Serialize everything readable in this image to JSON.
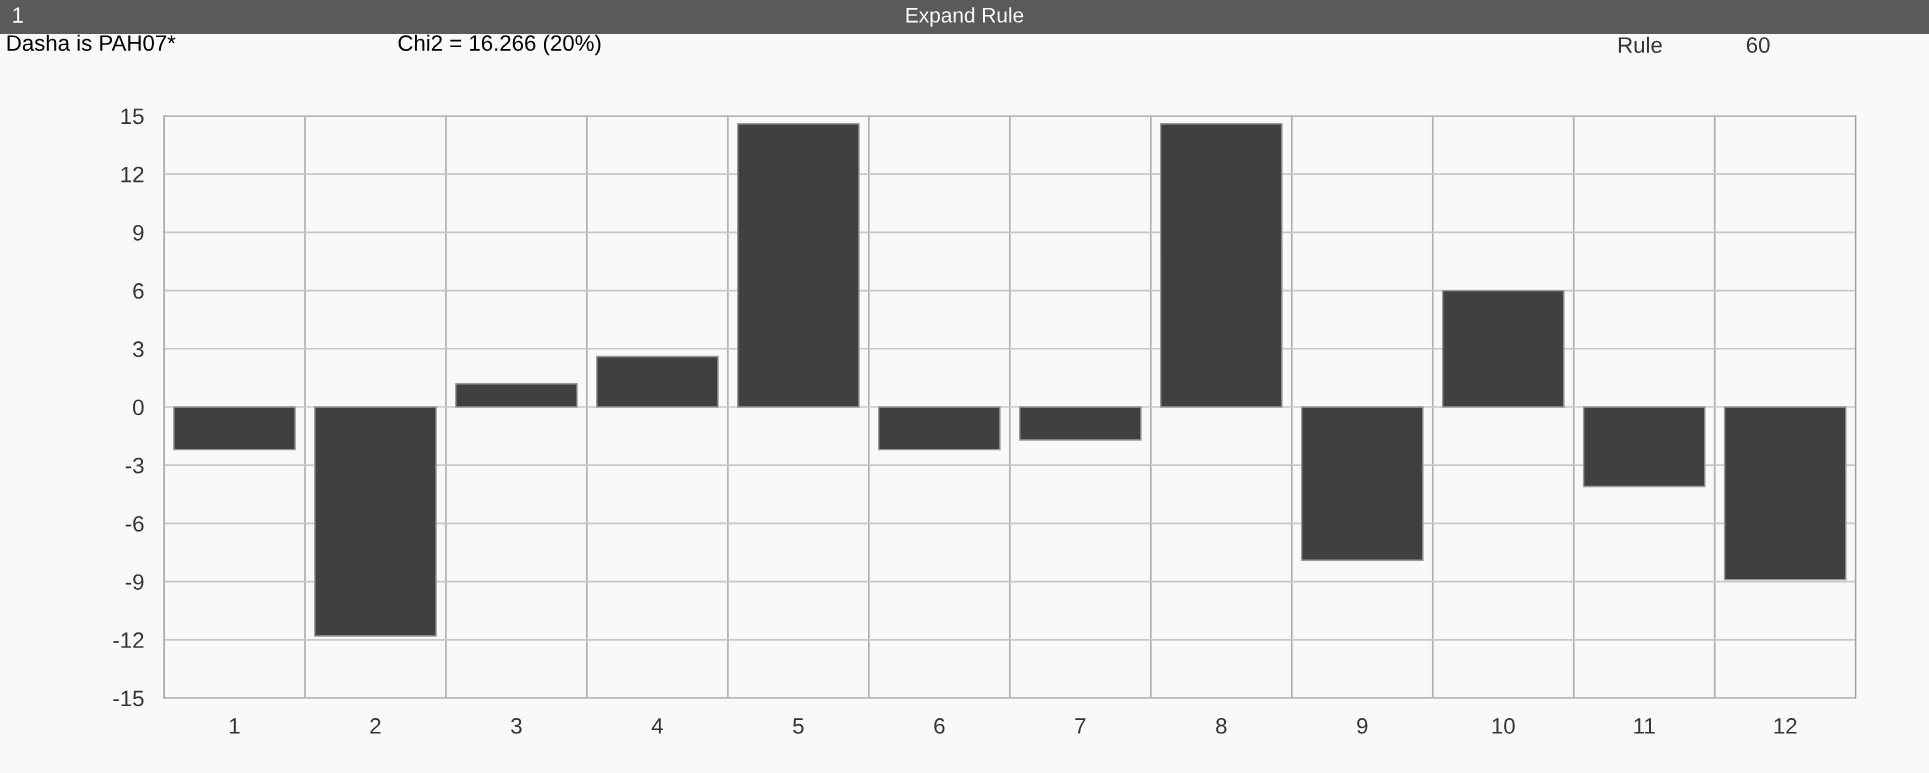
{
  "chart_data": {
    "type": "bar",
    "title": "Expand Rule",
    "subtitle": "Chi2 = 16.266 (20%)",
    "annotations": [
      "1",
      "Dasha is PAH07*",
      "Rule",
      "60"
    ],
    "categories": [
      "1",
      "2",
      "3",
      "4",
      "5",
      "6",
      "7",
      "8",
      "9",
      "10",
      "11",
      "12"
    ],
    "values": [
      -2.2,
      -11.8,
      1.2,
      2.6,
      14.6,
      -2.2,
      -1.7,
      14.6,
      -7.9,
      6.0,
      -4.1,
      -8.9
    ],
    "color": "#404040",
    "ylim": [
      -15,
      15
    ],
    "yticks": [
      -15,
      -12,
      -9,
      -6,
      -3,
      0,
      3,
      6,
      9,
      12,
      15
    ],
    "grid": true
  }
}
